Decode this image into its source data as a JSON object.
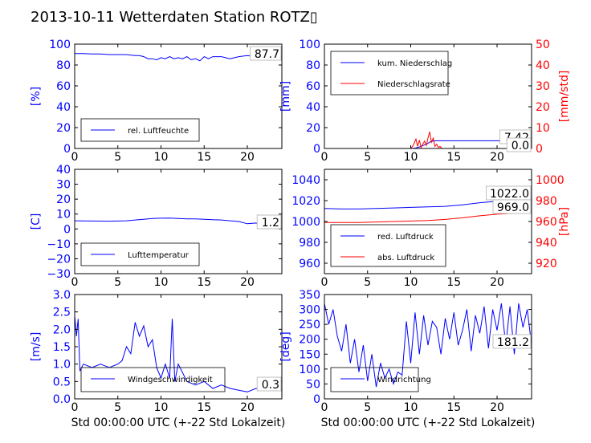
{
  "title": "2013-10-11 Wetterdaten Station ROTZ▯",
  "chart_data": [
    {
      "type": "line",
      "panel": "humidity",
      "ylabel": "[%]",
      "xlim": [
        0,
        24
      ],
      "ylim": [
        0,
        100
      ],
      "x_ticks": [
        "0",
        "5",
        "10",
        "15",
        "20"
      ],
      "y_ticks": [
        "0",
        "20",
        "40",
        "60",
        "80",
        "100"
      ],
      "grid": false,
      "legend_position": "lower-left",
      "current_value": "87.7",
      "series": [
        {
          "name": "rel. Luftfeuchte",
          "color": "#0000ff",
          "x": [
            0,
            1,
            2,
            3,
            4,
            5,
            6,
            7,
            7.5,
            8,
            8.5,
            9,
            9.5,
            10,
            10.5,
            11,
            11.5,
            12,
            12.5,
            13,
            13.5,
            14,
            14.5,
            15,
            15.5,
            16,
            17,
            18,
            19,
            20,
            21,
            22,
            23,
            24
          ],
          "values": [
            91,
            91,
            90.5,
            90.5,
            90,
            90,
            90,
            89,
            89,
            88,
            86,
            86,
            85,
            87,
            86,
            88,
            86,
            87,
            86,
            88,
            85,
            86,
            84,
            88,
            86,
            88,
            88,
            86,
            88,
            89,
            88,
            89,
            88,
            88
          ]
        }
      ]
    },
    {
      "type": "line",
      "panel": "precipitation",
      "ylabel": "[mm]",
      "ylabel_right": "[mm/std]",
      "xlim": [
        0,
        24
      ],
      "ylim": [
        0,
        100
      ],
      "ylim_right": [
        0,
        50
      ],
      "x_ticks": [
        "0",
        "5",
        "10",
        "15",
        "20"
      ],
      "y_ticks": [
        "0",
        "20",
        "40",
        "60",
        "80",
        "100"
      ],
      "y_ticks_right": [
        "0",
        "10",
        "20",
        "30",
        "40",
        "50"
      ],
      "grid": false,
      "legend_position": "top-left",
      "current_values": [
        "7.42",
        "0.0"
      ],
      "series": [
        {
          "name": "kum. Niederschlag",
          "color": "#0000ff",
          "axis": "left",
          "x": [
            0,
            10,
            10.5,
            11,
            11.5,
            12,
            12.3,
            12.6,
            13,
            24
          ],
          "values": [
            0,
            0,
            0.3,
            1.5,
            3,
            5,
            6.5,
            7.2,
            7.42,
            7.42
          ]
        },
        {
          "name": "Niederschlagsrate",
          "color": "#ff0000",
          "axis": "right",
          "x": [
            0,
            10,
            10.3,
            10.6,
            10.8,
            11,
            11.2,
            11.4,
            11.6,
            11.8,
            12,
            12.2,
            12.4,
            12.6,
            12.8,
            13,
            13.2,
            13.4,
            13.6,
            24
          ],
          "values": [
            0,
            0,
            1.5,
            4.5,
            1,
            4,
            0.5,
            2,
            3.5,
            1.5,
            5,
            8,
            3,
            5,
            1,
            2,
            0.5,
            1,
            0,
            0
          ]
        }
      ]
    },
    {
      "type": "line",
      "panel": "temperature",
      "ylabel": "[C]",
      "xlim": [
        0,
        24
      ],
      "ylim": [
        -30,
        40
      ],
      "x_ticks": [
        "0",
        "5",
        "10",
        "15",
        "20"
      ],
      "y_ticks": [
        "−30",
        "−20",
        "−10",
        "0",
        "10",
        "20",
        "30",
        "40"
      ],
      "grid": false,
      "legend_position": "lower-left",
      "current_value": "1.2",
      "series": [
        {
          "name": "Lufttemperatur",
          "color": "#0000ff",
          "x": [
            0,
            2,
            4,
            6,
            7,
            8,
            9,
            10,
            11,
            12,
            13,
            14,
            15,
            16,
            17,
            18,
            19,
            20,
            21,
            22,
            23,
            24
          ],
          "values": [
            5.5,
            5.3,
            5.2,
            5.5,
            6,
            6.5,
            7,
            7.2,
            7.3,
            7,
            6.8,
            6.8,
            6.5,
            6.2,
            6,
            5.5,
            5,
            3.5,
            4,
            2.5,
            1.8,
            1.2
          ]
        }
      ]
    },
    {
      "type": "line",
      "panel": "pressure",
      "ylabel_right": "[hPa]",
      "xlim": [
        0,
        24
      ],
      "ylim": [
        950,
        1050
      ],
      "ylim_right": [
        910,
        1010
      ],
      "x_ticks": [
        "0",
        "5",
        "10",
        "15",
        "20"
      ],
      "y_ticks": [
        "960",
        "980",
        "1000",
        "1020",
        "1040"
      ],
      "y_ticks_right": [
        "920",
        "940",
        "960",
        "980",
        "1000"
      ],
      "grid": false,
      "legend_position": "lower-left",
      "current_values": [
        "1022.0",
        "969.0"
      ],
      "series": [
        {
          "name": "red. Luftdruck",
          "color": "#0000ff",
          "axis": "left",
          "x": [
            0,
            2,
            4,
            6,
            8,
            10,
            12,
            14,
            16,
            18,
            20,
            22,
            24
          ],
          "values": [
            1012.5,
            1012,
            1012,
            1012.5,
            1013,
            1013.5,
            1014,
            1014.5,
            1016,
            1018,
            1019.5,
            1020.5,
            1022
          ]
        },
        {
          "name": "abs. Luftdruck",
          "color": "#ff0000",
          "axis": "right",
          "x": [
            0,
            2,
            4,
            6,
            8,
            10,
            12,
            14,
            16,
            18,
            20,
            22,
            24
          ],
          "values": [
            959,
            959,
            959,
            959.5,
            960,
            960.5,
            961,
            962,
            963.5,
            965.5,
            967,
            968,
            969
          ]
        }
      ]
    },
    {
      "type": "line",
      "panel": "wind-speed",
      "ylabel": "[m/s]",
      "xlabel": "Std 00:00:00 UTC (+-22 Std Lokalzeit)",
      "xlim": [
        0,
        24
      ],
      "ylim": [
        0,
        3.0
      ],
      "x_ticks": [
        "0",
        "5",
        "10",
        "15",
        "20"
      ],
      "y_ticks": [
        "0.0",
        "0.5",
        "1.0",
        "1.5",
        "2.0",
        "2.5",
        "3.0"
      ],
      "grid": false,
      "legend_position": "lower-center",
      "current_value": "0.3",
      "series": [
        {
          "name": "Windgeschwindigkeit",
          "color": "#0000ff",
          "x": [
            0,
            0.2,
            0.4,
            0.6,
            1,
            2,
            3,
            4,
            5,
            5.5,
            6,
            6.5,
            7,
            7.5,
            8,
            8.5,
            9,
            9.5,
            10,
            10.5,
            11,
            11.3,
            11.6,
            12,
            13,
            14,
            15,
            16,
            17,
            18,
            19,
            20,
            21,
            22,
            23,
            24
          ],
          "values": [
            2.4,
            1.8,
            2.3,
            0.8,
            1.0,
            0.9,
            1.0,
            0.9,
            1.0,
            1.1,
            1.5,
            1.3,
            2.2,
            1.8,
            2.1,
            1.5,
            1.7,
            0.9,
            0.6,
            1.0,
            0.6,
            2.3,
            0.5,
            1.0,
            0.5,
            0.4,
            0.5,
            0.3,
            0.4,
            0.3,
            0.25,
            0.2,
            0.3,
            0.25,
            0.35,
            0.3
          ]
        }
      ]
    },
    {
      "type": "line",
      "panel": "wind-direction",
      "ylabel": "[deg]",
      "xlabel": "Std 00:00:00 UTC (+-22 Std Lokalzeit)",
      "xlim": [
        0,
        24
      ],
      "ylim": [
        0,
        350
      ],
      "x_ticks": [
        "0",
        "5",
        "10",
        "15",
        "20"
      ],
      "y_ticks": [
        "0",
        "50",
        "100",
        "150",
        "200",
        "250",
        "300",
        "350"
      ],
      "grid": false,
      "legend_position": "lower-left",
      "current_value": "181.2",
      "series": [
        {
          "name": "Windrichtung",
          "color": "#0000ff",
          "x": [
            0,
            0.5,
            1,
            1.5,
            2,
            2.5,
            3,
            3.5,
            4,
            4.5,
            5,
            5.5,
            6,
            6.5,
            7,
            7.5,
            8,
            8.5,
            9,
            9.5,
            10,
            10.5,
            11,
            11.5,
            12,
            12.5,
            13,
            13.5,
            14,
            14.5,
            15,
            15.5,
            16,
            16.5,
            17,
            17.5,
            18,
            18.5,
            19,
            19.5,
            20,
            20.5,
            21,
            21.5,
            22,
            22.5,
            23,
            23.5,
            24
          ],
          "values": [
            320,
            250,
            300,
            210,
            160,
            250,
            120,
            200,
            90,
            180,
            60,
            150,
            40,
            120,
            70,
            100,
            50,
            90,
            80,
            260,
            120,
            290,
            150,
            280,
            180,
            260,
            240,
            150,
            270,
            200,
            290,
            180,
            230,
            300,
            160,
            280,
            220,
            310,
            170,
            300,
            230,
            320,
            180,
            310,
            150,
            320,
            240,
            300,
            181.2
          ]
        }
      ]
    }
  ]
}
